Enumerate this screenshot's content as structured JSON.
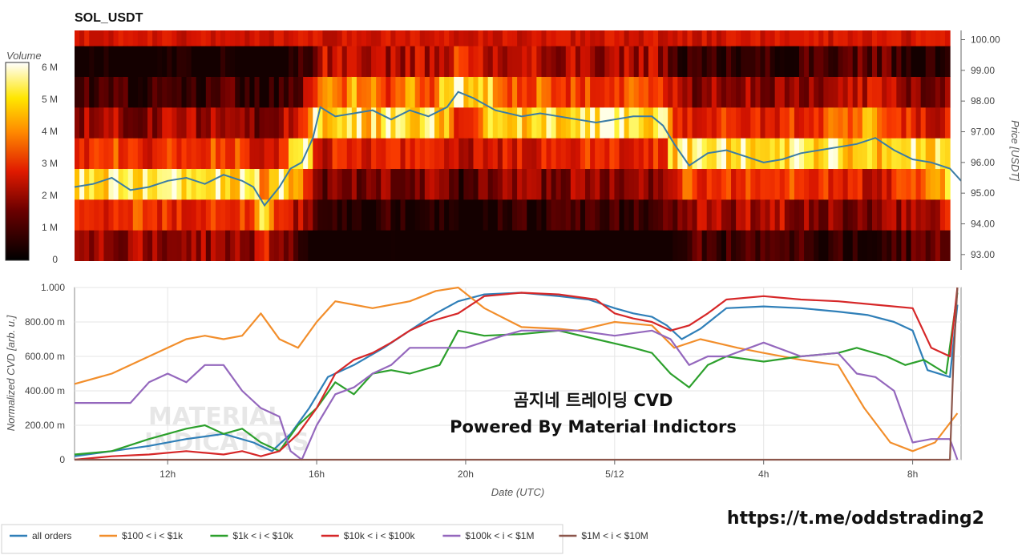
{
  "title": "SOL_USDT",
  "colorbar": {
    "label": "Volume",
    "ticks": [
      "6 M",
      "5 M",
      "4 M",
      "3 M",
      "2 M",
      "1 M",
      "0"
    ]
  },
  "overlay": {
    "line1": "곰지네 트레이딩 CVD",
    "line2": "Powered By Material Indictors",
    "url": "https://t.me/oddstrading2",
    "watermark_line1": "MATERIAL",
    "watermark_line2": "INDICATORS"
  },
  "colors": {
    "all_orders": "#2f7fb8",
    "b100_1k": "#f28e2b",
    "b1k_10k": "#2ca02c",
    "b10k_100k": "#d62728",
    "b100k_1M": "#9467bd",
    "b1M_10M": "#8c564b",
    "price": "#3a7ca5"
  },
  "chart_data": [
    {
      "type": "heatmap",
      "title": "SOL_USDT",
      "ylabel": "Price [USDT]",
      "y_ticks": [
        "100.00",
        "99.00",
        "98.00",
        "97.00",
        "96.00",
        "95.00",
        "94.00",
        "93.00"
      ],
      "ylim": [
        92.5,
        100.3
      ],
      "colorbar_label": "Volume",
      "colorbar_range": [
        0,
        6500000
      ],
      "price_bins": [
        92.8,
        93.8,
        94.8,
        95.8,
        96.8,
        97.8,
        98.8,
        99.8
      ],
      "price_line": {
        "name": "price",
        "x": [
          9.5,
          10.0,
          10.5,
          11.0,
          11.5,
          12.0,
          12.5,
          13.0,
          13.5,
          14.0,
          14.3,
          14.6,
          15.0,
          15.3,
          15.6,
          15.9,
          16.1,
          16.5,
          17.0,
          17.5,
          18.0,
          18.5,
          19.0,
          19.5,
          19.8,
          20.2,
          20.8,
          21.5,
          22.0,
          22.5,
          23.0,
          23.5,
          24.0,
          24.5,
          25.0,
          25.3,
          25.6,
          26.0,
          26.5,
          27.0,
          27.5,
          28.0,
          28.5,
          29.0,
          29.5,
          30.0,
          30.5,
          31.0,
          31.5,
          32.0,
          32.5,
          33.0,
          33.3
        ],
        "price": [
          95.2,
          95.3,
          95.5,
          95.1,
          95.2,
          95.4,
          95.5,
          95.3,
          95.6,
          95.4,
          95.2,
          94.6,
          95.2,
          95.8,
          96.0,
          96.8,
          97.8,
          97.5,
          97.6,
          97.7,
          97.4,
          97.7,
          97.5,
          97.8,
          98.3,
          98.1,
          97.7,
          97.5,
          97.6,
          97.5,
          97.4,
          97.3,
          97.4,
          97.5,
          97.5,
          97.2,
          96.6,
          95.9,
          96.3,
          96.4,
          96.2,
          96.0,
          96.1,
          96.3,
          96.4,
          96.5,
          96.6,
          96.8,
          96.4,
          96.1,
          96.0,
          95.8,
          95.4
        ]
      }
    },
    {
      "type": "line",
      "xlabel": "Date (UTC)",
      "ylabel": "Normalized CVD [arb. u.]",
      "x_ticks": [
        "12h",
        "16h",
        "20h",
        "5/12",
        "4h",
        "8h"
      ],
      "x_tick_hours": [
        12,
        16,
        20,
        24,
        28,
        32
      ],
      "xlim": [
        9.5,
        33.3
      ],
      "y_ticks": [
        "0",
        "200.00 m",
        "400.00 m",
        "600.00 m",
        "800.00 m",
        "1.000"
      ],
      "ylim": [
        0,
        1
      ],
      "series": [
        {
          "name": "all orders",
          "x": [
            9.5,
            10.5,
            11.5,
            12.5,
            13.5,
            14.3,
            14.8,
            15.3,
            15.8,
            16.3,
            17.0,
            17.8,
            18.5,
            19.2,
            19.8,
            20.5,
            21.5,
            22.5,
            23.3,
            24.0,
            24.5,
            25.0,
            25.4,
            25.8,
            26.3,
            27.0,
            28.0,
            29.0,
            30.0,
            30.8,
            31.5,
            32.0,
            32.4,
            33.0,
            33.2
          ],
          "y": [
            0.02,
            0.05,
            0.08,
            0.12,
            0.15,
            0.1,
            0.05,
            0.15,
            0.3,
            0.48,
            0.55,
            0.65,
            0.75,
            0.85,
            0.92,
            0.96,
            0.97,
            0.95,
            0.93,
            0.88,
            0.85,
            0.83,
            0.78,
            0.7,
            0.76,
            0.88,
            0.89,
            0.88,
            0.86,
            0.84,
            0.8,
            0.75,
            0.52,
            0.48,
            0.9
          ]
        },
        {
          "name": "$100 < i < $1k",
          "x": [
            9.5,
            10.5,
            11.5,
            12.5,
            13.0,
            13.5,
            14.0,
            14.5,
            15.0,
            15.5,
            16.0,
            16.5,
            17.0,
            17.5,
            18.5,
            19.2,
            19.8,
            20.5,
            21.5,
            22.5,
            23.0,
            24.0,
            25.0,
            25.6,
            26.3,
            27.3,
            28.0,
            29.0,
            30.0,
            30.7,
            31.4,
            32.0,
            32.6,
            33.2
          ],
          "y": [
            0.44,
            0.5,
            0.6,
            0.7,
            0.72,
            0.7,
            0.72,
            0.85,
            0.7,
            0.65,
            0.8,
            0.92,
            0.9,
            0.88,
            0.92,
            0.98,
            1.0,
            0.88,
            0.77,
            0.76,
            0.75,
            0.8,
            0.78,
            0.65,
            0.7,
            0.65,
            0.62,
            0.58,
            0.55,
            0.3,
            0.1,
            0.05,
            0.1,
            0.27
          ]
        },
        {
          "name": "$1k < i < $10k",
          "x": [
            9.5,
            10.5,
            11.5,
            12.5,
            13.0,
            13.5,
            14.0,
            14.5,
            15.0,
            15.5,
            16.0,
            16.5,
            17.0,
            17.5,
            18.0,
            18.5,
            19.3,
            19.8,
            20.5,
            21.5,
            22.5,
            23.5,
            24.5,
            25.0,
            25.5,
            26.0,
            26.5,
            27.0,
            28.0,
            29.0,
            30.0,
            30.5,
            31.3,
            31.8,
            32.3,
            32.9,
            33.2
          ],
          "y": [
            0.03,
            0.05,
            0.12,
            0.18,
            0.2,
            0.15,
            0.18,
            0.1,
            0.05,
            0.2,
            0.3,
            0.45,
            0.38,
            0.5,
            0.52,
            0.5,
            0.55,
            0.75,
            0.72,
            0.73,
            0.75,
            0.7,
            0.65,
            0.62,
            0.5,
            0.42,
            0.55,
            0.6,
            0.57,
            0.6,
            0.62,
            0.65,
            0.6,
            0.55,
            0.58,
            0.5,
            0.97
          ]
        },
        {
          "name": "$10k < i < $100k",
          "x": [
            9.5,
            10.5,
            11.5,
            12.5,
            13.0,
            13.5,
            14.0,
            14.5,
            15.0,
            15.5,
            16.0,
            16.5,
            17.0,
            17.5,
            18.0,
            18.5,
            19.0,
            19.8,
            20.5,
            21.5,
            22.5,
            23.5,
            24.0,
            24.5,
            25.0,
            25.5,
            26.0,
            26.5,
            27.0,
            28.0,
            29.0,
            30.0,
            31.0,
            32.0,
            32.5,
            33.0,
            33.2
          ],
          "y": [
            0.0,
            0.02,
            0.03,
            0.05,
            0.04,
            0.03,
            0.05,
            0.02,
            0.05,
            0.15,
            0.3,
            0.5,
            0.58,
            0.62,
            0.68,
            0.75,
            0.8,
            0.85,
            0.95,
            0.97,
            0.96,
            0.93,
            0.85,
            0.82,
            0.8,
            0.75,
            0.78,
            0.85,
            0.93,
            0.95,
            0.93,
            0.92,
            0.9,
            0.88,
            0.65,
            0.6,
            1.0
          ]
        },
        {
          "name": "$100k < i < $1M",
          "x": [
            9.5,
            10.0,
            11.0,
            11.5,
            12.0,
            12.5,
            13.0,
            13.5,
            14.0,
            14.5,
            15.0,
            15.3,
            15.6,
            16.0,
            16.5,
            17.0,
            17.5,
            18.0,
            18.5,
            19.0,
            20.0,
            21.0,
            21.5,
            22.5,
            23.0,
            24.0,
            25.0,
            25.5,
            26.0,
            26.5,
            27.0,
            28.0,
            29.0,
            30.0,
            30.5,
            31.0,
            31.5,
            32.0,
            32.5,
            33.0,
            33.2
          ],
          "y": [
            0.33,
            0.33,
            0.33,
            0.45,
            0.5,
            0.45,
            0.55,
            0.55,
            0.4,
            0.3,
            0.25,
            0.05,
            0.0,
            0.2,
            0.38,
            0.42,
            0.5,
            0.55,
            0.65,
            0.65,
            0.65,
            0.72,
            0.75,
            0.75,
            0.75,
            0.72,
            0.75,
            0.7,
            0.55,
            0.6,
            0.6,
            0.68,
            0.6,
            0.62,
            0.5,
            0.48,
            0.4,
            0.1,
            0.12,
            0.12,
            0.0
          ]
        },
        {
          "name": "$1M < i < $10M",
          "x": [
            9.5,
            15.0,
            20.0,
            25.0,
            30.0,
            33.0,
            33.1,
            33.2
          ],
          "y": [
            0.0,
            0.0,
            0.0,
            0.0,
            0.0,
            0.0,
            0.6,
            1.0
          ]
        }
      ]
    }
  ]
}
